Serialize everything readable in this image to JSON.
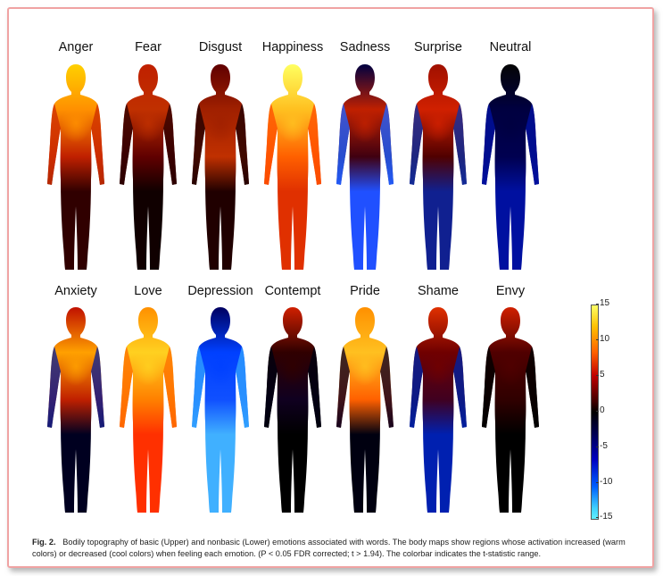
{
  "figure": {
    "top_row": [
      "Anger",
      "Fear",
      "Disgust",
      "Happiness",
      "Sadness",
      "Surprise",
      "Neutral"
    ],
    "bottom_row": [
      "Anxiety",
      "Love",
      "Depression",
      "Contempt",
      "Pride",
      "Shame",
      "Envy"
    ],
    "colorbar_ticks": [
      "15",
      "10",
      "5",
      "0",
      "-5",
      "-10",
      "-15"
    ],
    "colors": {
      "frame": "#f0a3a3",
      "hot": "#ffff66",
      "warm": "#ff4000",
      "neutral": "#000000",
      "cool": "#0050ff",
      "coldest": "#60f0ff"
    }
  },
  "caption": {
    "label": "Fig. 2.",
    "text": "Bodily topography of basic (Upper) and nonbasic (Lower) emotions associated with words. The body maps show regions whose activation increased (warm colors) or decreased (cool colors) when feeling each emotion. (P < 0.05 FDR corrected; t > 1.94). The colorbar indicates the t-statistic range."
  }
}
